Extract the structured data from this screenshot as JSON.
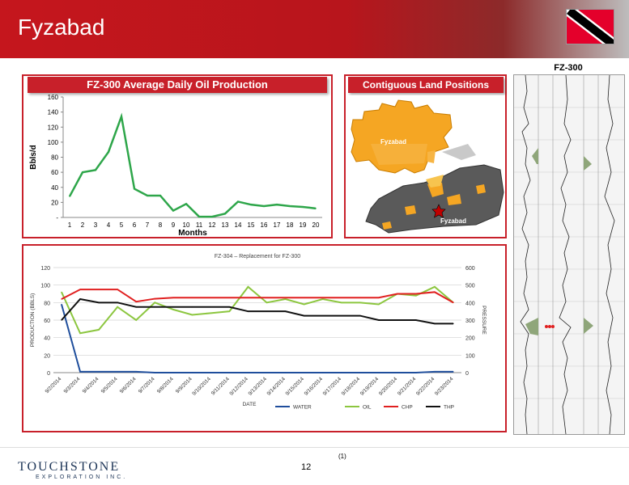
{
  "slide": {
    "title": "Fyzabad",
    "page_number": "12",
    "footnote": "(1)",
    "logo_text": "TOUCHSTONE",
    "logo_subtext": "EXPLORATION INC."
  },
  "panels": {
    "production": {
      "header": "FZ-300 Average Daily Oil Production"
    },
    "land": {
      "header": "Contiguous Land Positions",
      "label_top": "Fyzabad",
      "label_bottom": "Fyzabad"
    },
    "log": {
      "title": "FZ-300"
    }
  },
  "chart_data": [
    {
      "type": "line",
      "title": "FZ-300 Average Daily Oil Production",
      "xlabel": "Months",
      "ylabel": "Bbls/d",
      "x": [
        1,
        2,
        3,
        4,
        5,
        6,
        7,
        8,
        9,
        10,
        11,
        12,
        13,
        14,
        15,
        16,
        17,
        18,
        19,
        20
      ],
      "series": [
        {
          "values": [
            28,
            60,
            63,
            87,
            134,
            38,
            29,
            29,
            9,
            18,
            1,
            1,
            5,
            21,
            17,
            15,
            17,
            15,
            14,
            12
          ],
          "color": "#2ea64a"
        }
      ],
      "ylim": [
        0,
        160
      ],
      "yticks": [
        "-",
        "20",
        "40",
        "60",
        "80",
        "100",
        "120",
        "140",
        "160"
      ],
      "grid": false
    },
    {
      "type": "line",
      "title": "FZ-304 – Replacement for FZ-300",
      "xlabel": "DATE",
      "ylabel": "PRODUCTION (BBLS)",
      "ylabel_right": "PRESSURE",
      "categories": [
        "9/2/2014",
        "9/3/2014",
        "9/4/2014",
        "9/5/2014",
        "9/6/2014",
        "9/7/2014",
        "9/8/2014",
        "9/9/2014",
        "9/10/2014",
        "9/11/2014",
        "9/12/2014",
        "9/13/2014",
        "9/14/2014",
        "9/15/2014",
        "9/16/2014",
        "9/17/2014",
        "9/18/2014",
        "9/19/2014",
        "9/20/2014",
        "9/21/2014",
        "9/22/2014",
        "9/23/2014"
      ],
      "ylim": [
        0,
        120
      ],
      "ylim_right": [
        0,
        600
      ],
      "yticks_left": [
        0,
        20,
        40,
        60,
        80,
        100,
        120
      ],
      "yticks_right": [
        0,
        100,
        200,
        300,
        400,
        500,
        600
      ],
      "grid": true,
      "legend_position": "bottom-right",
      "series": [
        {
          "name": "WATER",
          "axis": "left",
          "color": "#1f4e9c",
          "values": [
            78,
            1,
            1,
            1,
            1,
            0,
            0,
            0,
            0,
            0,
            0,
            0,
            0,
            0,
            0,
            0,
            0,
            0,
            0,
            0,
            1,
            1
          ]
        },
        {
          "name": "OIL",
          "axis": "left",
          "color": "#8cc63f",
          "values": [
            92,
            45,
            49,
            75,
            60,
            80,
            72,
            66,
            68,
            70,
            98,
            80,
            84,
            78,
            84,
            80,
            80,
            78,
            90,
            88,
            98,
            80
          ]
        },
        {
          "name": "CHP",
          "axis": "right",
          "color": "#e02020",
          "values": [
            420,
            475,
            475,
            475,
            405,
            422,
            428,
            428,
            428,
            428,
            428,
            428,
            428,
            428,
            428,
            428,
            428,
            428,
            450,
            450,
            460,
            400
          ]
        },
        {
          "name": "THP",
          "axis": "right",
          "color": "#111111",
          "values": [
            300,
            420,
            400,
            400,
            375,
            375,
            375,
            375,
            375,
            375,
            350,
            350,
            350,
            325,
            325,
            325,
            325,
            300,
            300,
            300,
            280,
            280
          ]
        }
      ]
    }
  ]
}
